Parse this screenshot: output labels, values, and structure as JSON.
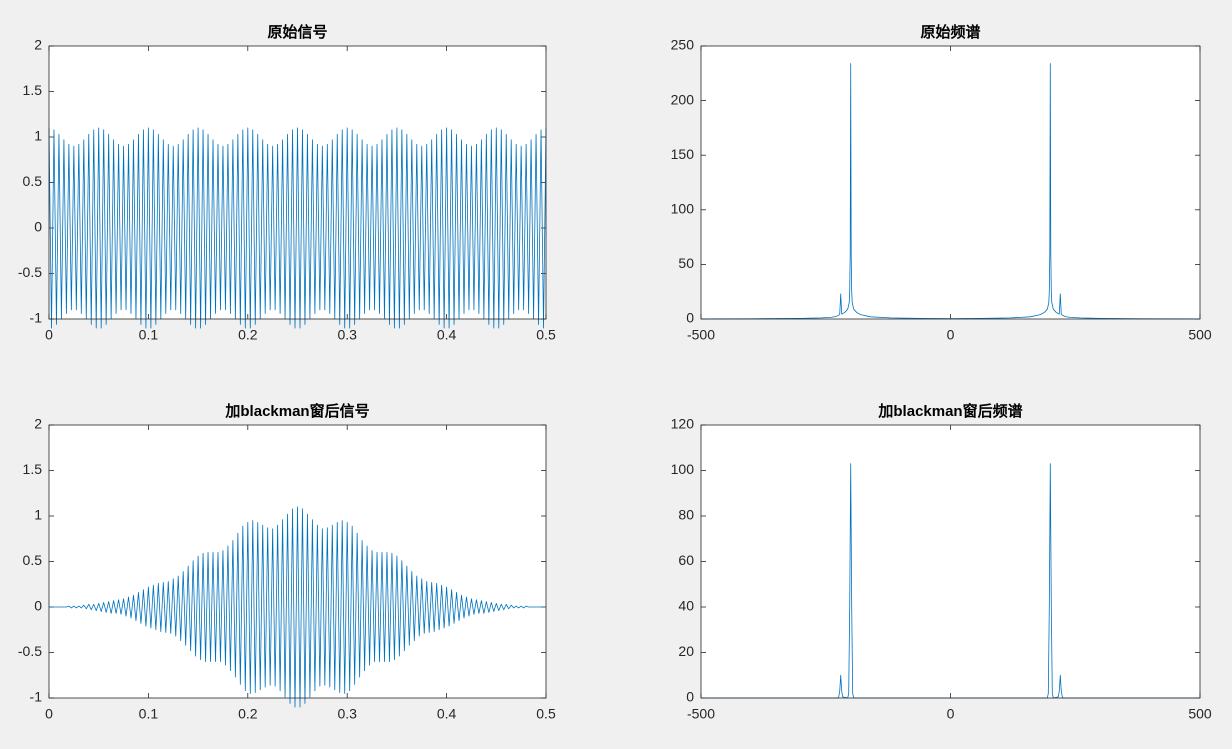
{
  "chart_data": [
    {
      "type": "line",
      "title": "原始信号",
      "color": "#0072bd",
      "x": [
        0,
        0.0025,
        0.005,
        0.0075,
        0.01,
        0.0125,
        0.015,
        0.0175,
        0.02,
        0.0225,
        0.025,
        0.0275,
        0.03,
        0.0325,
        0.035,
        0.0375,
        0.04,
        0.0425,
        0.045,
        0.0475,
        0.05,
        0.0525,
        0.055,
        0.0575,
        0.06,
        0.0625,
        0.065,
        0.0675,
        0.07,
        0.0725,
        0.075,
        0.0775,
        0.08,
        0.0825,
        0.085,
        0.0875,
        0.09,
        0.0925,
        0.095,
        0.0975,
        0.1,
        0.1025,
        0.105,
        0.1075,
        0.11,
        0.1125,
        0.115,
        0.1175,
        0.12,
        0.1225,
        0.125,
        0.1275,
        0.13,
        0.1325,
        0.135,
        0.1375,
        0.14,
        0.1425,
        0.145,
        0.1475,
        0.15,
        0.1525,
        0.155,
        0.1575,
        0.16,
        0.1625,
        0.165,
        0.1675,
        0.17,
        0.1725,
        0.175,
        0.1775,
        0.18,
        0.1825,
        0.185,
        0.1875,
        0.19,
        0.1925,
        0.195,
        0.1975,
        0.2,
        0.2025,
        0.205,
        0.2075,
        0.21,
        0.2125,
        0.215,
        0.2175,
        0.22,
        0.2225,
        0.225,
        0.2275,
        0.23,
        0.2325,
        0.235,
        0.2375,
        0.24,
        0.2425,
        0.245,
        0.2475,
        0.25,
        0.2525,
        0.255,
        0.2575,
        0.26,
        0.2625,
        0.265,
        0.2675,
        0.27,
        0.2725,
        0.275,
        0.2775,
        0.28,
        0.2825,
        0.285,
        0.2875,
        0.29,
        0.2925,
        0.295,
        0.2975,
        0.3,
        0.3025,
        0.305,
        0.3075,
        0.31,
        0.3125,
        0.315,
        0.3175,
        0.32,
        0.3225,
        0.325,
        0.3275,
        0.33,
        0.3325,
        0.335,
        0.3375,
        0.34,
        0.3425,
        0.345,
        0.3475,
        0.35,
        0.3525,
        0.355,
        0.3575,
        0.36,
        0.3625,
        0.365,
        0.3675,
        0.37,
        0.3725,
        0.375,
        0.3775,
        0.38,
        0.3825,
        0.385,
        0.3875,
        0.39,
        0.3925,
        0.395,
        0.3975,
        0.4,
        0.4025,
        0.405,
        0.4075,
        0.41,
        0.4125,
        0.415,
        0.4175,
        0.42,
        0.4225,
        0.425,
        0.4275,
        0.43,
        0.4325,
        0.435,
        0.4375,
        0.44,
        0.4425,
        0.445,
        0.4475,
        0.45,
        0.4525,
        0.455,
        0.4575,
        0.46,
        0.4625,
        0.465,
        0.4675,
        0.47,
        0.4725,
        0.475,
        0.4775,
        0.48,
        0.4825,
        0.485,
        0.4875,
        0.49,
        0.4925,
        0.495,
        0.4975,
        0.5
      ],
      "values": [
        1.1,
        -1.1,
        1.08,
        -1.06,
        1.03,
        -1,
        0.97,
        -0.94,
        0.92,
        -0.9,
        0.9,
        -0.9,
        0.92,
        -0.94,
        0.97,
        -1,
        1.03,
        -1.06,
        1.08,
        -1.1,
        1.1,
        -1.1,
        1.08,
        -1.06,
        1.03,
        -1,
        0.97,
        -0.94,
        0.92,
        -0.9,
        0.9,
        -0.9,
        0.92,
        -0.94,
        0.97,
        -1,
        1.03,
        -1.06,
        1.08,
        -1.1,
        1.1,
        -1.1,
        1.08,
        -1.06,
        1.03,
        -1,
        0.97,
        -0.94,
        0.92,
        -0.9,
        0.9,
        -0.9,
        0.92,
        -0.94,
        0.97,
        -1,
        1.03,
        -1.06,
        1.08,
        -1.1,
        1.1,
        -1.1,
        1.08,
        -1.06,
        1.03,
        -1,
        0.97,
        -0.94,
        0.92,
        -0.9,
        0.9,
        -0.9,
        0.92,
        -0.94,
        0.97,
        -1,
        1.03,
        -1.06,
        1.08,
        -1.1,
        1.1,
        -1.1,
        1.08,
        -1.06,
        1.03,
        -1,
        0.97,
        -0.94,
        0.92,
        -0.9,
        0.9,
        -0.9,
        0.92,
        -0.94,
        0.97,
        -1,
        1.03,
        -1.06,
        1.08,
        -1.1,
        1.1,
        -1.1,
        1.08,
        -1.06,
        1.03,
        -1,
        0.97,
        -0.94,
        0.92,
        -0.9,
        0.9,
        -0.9,
        0.92,
        -0.94,
        0.97,
        -1,
        1.03,
        -1.06,
        1.08,
        -1.1,
        1.1,
        -1.1,
        1.08,
        -1.06,
        1.03,
        -1,
        0.97,
        -0.94,
        0.92,
        -0.9,
        0.9,
        -0.9,
        0.92,
        -0.94,
        0.97,
        -1,
        1.03,
        -1.06,
        1.08,
        -1.1,
        1.1,
        -1.1,
        1.08,
        -1.06,
        1.03,
        -1,
        0.97,
        -0.94,
        0.92,
        -0.9,
        0.9,
        -0.9,
        0.92,
        -0.94,
        0.97,
        -1,
        1.03,
        -1.06,
        1.08,
        -1.1,
        1.1,
        -1.1,
        1.08,
        -1.06,
        1.03,
        -1,
        0.97,
        -0.94,
        0.92,
        -0.9,
        0.9,
        -0.9,
        0.92,
        -0.94,
        0.97,
        -1,
        1.03,
        -1.06,
        1.08,
        -1.1,
        1.1,
        -1.1,
        1.08,
        -1.06,
        1.03,
        -1,
        0.97,
        -0.94,
        0.92,
        -0.9,
        0.9,
        -0.9,
        0.92,
        -0.94,
        0.97,
        -1,
        1.03,
        -1.06,
        1.08,
        -1.1,
        1.1
      ],
      "xlim": [
        0,
        0.5
      ],
      "xticks": [
        0,
        0.1,
        0.2,
        0.3,
        0.4,
        0.5
      ],
      "ylim": [
        -1,
        2
      ],
      "yticks": [
        -1,
        -0.5,
        0,
        0.5,
        1,
        1.5,
        2
      ]
    },
    {
      "type": "line",
      "title": "原始频谱",
      "color": "#0072bd",
      "x": [
        -500,
        -400,
        -300,
        -260,
        -240,
        -230,
        -224,
        -222,
        -220,
        -218,
        -212,
        -206,
        -203,
        -202,
        -201,
        -200,
        -199,
        -198,
        -197,
        -194,
        -188,
        -180,
        -160,
        -120,
        -60,
        0,
        60,
        120,
        160,
        180,
        188,
        194,
        197,
        198,
        199,
        200,
        201,
        202,
        203,
        206,
        212,
        218,
        220,
        222,
        224,
        230,
        240,
        260,
        300,
        400,
        500
      ],
      "values": [
        0.1,
        0.2,
        0.5,
        1,
        1.5,
        2.2,
        3.5,
        4.5,
        23,
        4.5,
        6,
        9,
        15,
        25,
        60,
        234,
        60,
        25,
        15,
        9,
        6,
        4,
        2,
        1,
        0.5,
        0.3,
        0.5,
        1,
        2,
        4,
        6,
        9,
        15,
        25,
        60,
        234,
        60,
        25,
        15,
        9,
        6,
        4.5,
        23,
        4.5,
        3.5,
        2.2,
        1.5,
        1,
        0.5,
        0.2,
        0.1
      ],
      "xlim": [
        -500,
        500
      ],
      "xticks": [
        -500,
        0,
        500
      ],
      "ylim": [
        0,
        250
      ],
      "yticks": [
        0,
        50,
        100,
        150,
        200,
        250
      ]
    },
    {
      "type": "line",
      "title": "加blackman窗后信号",
      "color": "#0072bd",
      "x": [
        0,
        0.0025,
        0.005,
        0.0075,
        0.01,
        0.0125,
        0.015,
        0.0175,
        0.02,
        0.0225,
        0.025,
        0.0275,
        0.03,
        0.0325,
        0.035,
        0.0375,
        0.04,
        0.0425,
        0.045,
        0.0475,
        0.05,
        0.0525,
        0.055,
        0.0575,
        0.06,
        0.0625,
        0.065,
        0.0675,
        0.07,
        0.0725,
        0.075,
        0.0775,
        0.08,
        0.0825,
        0.085,
        0.0875,
        0.09,
        0.0925,
        0.095,
        0.0975,
        0.1,
        0.1025,
        0.105,
        0.1075,
        0.11,
        0.1125,
        0.115,
        0.1175,
        0.12,
        0.1225,
        0.125,
        0.1275,
        0.13,
        0.1325,
        0.135,
        0.1375,
        0.14,
        0.1425,
        0.145,
        0.1475,
        0.15,
        0.1525,
        0.155,
        0.1575,
        0.16,
        0.1625,
        0.165,
        0.1675,
        0.17,
        0.1725,
        0.175,
        0.1775,
        0.18,
        0.1825,
        0.185,
        0.1875,
        0.19,
        0.1925,
        0.195,
        0.1975,
        0.2,
        0.2025,
        0.205,
        0.2075,
        0.21,
        0.2125,
        0.215,
        0.2175,
        0.22,
        0.2225,
        0.225,
        0.2275,
        0.23,
        0.2325,
        0.235,
        0.2375,
        0.24,
        0.2425,
        0.245,
        0.2475,
        0.25,
        0.2525,
        0.255,
        0.2575,
        0.26,
        0.2625,
        0.265,
        0.2675,
        0.27,
        0.2725,
        0.275,
        0.2775,
        0.28,
        0.2825,
        0.285,
        0.2875,
        0.29,
        0.2925,
        0.295,
        0.2975,
        0.3,
        0.3025,
        0.305,
        0.3075,
        0.31,
        0.3125,
        0.315,
        0.3175,
        0.32,
        0.3225,
        0.325,
        0.3275,
        0.33,
        0.3325,
        0.335,
        0.3375,
        0.34,
        0.3425,
        0.345,
        0.3475,
        0.35,
        0.3525,
        0.355,
        0.3575,
        0.36,
        0.3625,
        0.365,
        0.3675,
        0.37,
        0.3725,
        0.375,
        0.3775,
        0.38,
        0.3825,
        0.385,
        0.3875,
        0.39,
        0.3925,
        0.395,
        0.3975,
        0.4,
        0.4025,
        0.405,
        0.4075,
        0.41,
        0.4125,
        0.415,
        0.4175,
        0.42,
        0.4225,
        0.425,
        0.4275,
        0.43,
        0.4325,
        0.435,
        0.4375,
        0.44,
        0.4425,
        0.445,
        0.4475,
        0.45,
        0.4525,
        0.455,
        0.4575,
        0.46,
        0.4625,
        0.465,
        0.4675,
        0.47,
        0.4725,
        0.475,
        0.4775,
        0.48,
        0.4825,
        0.485,
        0.4875,
        0.49,
        0.4925,
        0.495,
        0.4975,
        0.5
      ],
      "values": [
        0,
        0,
        0,
        0,
        0,
        0,
        0,
        0,
        0.01,
        -0.01,
        0.01,
        -0.01,
        0.01,
        -0.01,
        0.02,
        -0.02,
        0.03,
        -0.03,
        0.03,
        -0.04,
        0.04,
        -0.05,
        0.05,
        -0.06,
        0.06,
        -0.07,
        0.07,
        -0.07,
        0.08,
        -0.08,
        0.09,
        -0.1,
        0.11,
        -0.12,
        0.13,
        -0.15,
        0.16,
        -0.18,
        0.19,
        -0.21,
        0.22,
        -0.23,
        0.24,
        -0.25,
        0.26,
        -0.27,
        0.27,
        -0.28,
        0.28,
        -0.29,
        0.31,
        -0.32,
        0.34,
        -0.37,
        0.39,
        -0.42,
        0.45,
        -0.48,
        0.51,
        -0.54,
        0.56,
        -0.58,
        0.59,
        -0.6,
        0.6,
        -0.6,
        0.6,
        -0.6,
        0.6,
        -0.6,
        0.62,
        -0.64,
        0.67,
        -0.7,
        0.73,
        -0.77,
        0.81,
        -0.85,
        0.89,
        -0.92,
        0.93,
        -0.95,
        0.95,
        -0.94,
        0.93,
        -0.91,
        0.9,
        -0.88,
        0.87,
        -0.86,
        0.86,
        -0.87,
        0.9,
        -0.92,
        0.96,
        -0.99,
        1.02,
        -1.06,
        1.08,
        -1.1,
        1.1,
        -1.1,
        1.08,
        -1.06,
        1.02,
        -0.99,
        0.96,
        -0.92,
        0.9,
        -0.87,
        0.86,
        -0.86,
        0.87,
        -0.88,
        0.9,
        -0.91,
        0.93,
        -0.94,
        0.95,
        -0.95,
        0.93,
        -0.92,
        0.89,
        -0.85,
        0.81,
        -0.77,
        0.73,
        -0.7,
        0.67,
        -0.64,
        0.62,
        -0.6,
        0.6,
        -0.6,
        0.6,
        -0.6,
        0.6,
        -0.6,
        0.59,
        -0.58,
        0.56,
        -0.54,
        0.51,
        -0.48,
        0.45,
        -0.42,
        0.39,
        -0.37,
        0.34,
        -0.32,
        0.31,
        -0.29,
        0.28,
        -0.28,
        0.27,
        -0.27,
        0.26,
        -0.25,
        0.24,
        -0.23,
        0.22,
        -0.21,
        0.19,
        -0.18,
        0.16,
        -0.15,
        0.13,
        -0.12,
        0.11,
        -0.1,
        0.09,
        -0.08,
        0.08,
        -0.07,
        0.07,
        -0.07,
        0.06,
        -0.06,
        0.05,
        -0.05,
        0.04,
        -0.04,
        0.03,
        -0.03,
        0.03,
        -0.02,
        0.02,
        -0.01,
        0.01,
        -0.01,
        0.01,
        -0.01,
        0.01,
        0,
        0,
        0,
        0,
        0,
        0,
        0,
        0
      ],
      "xlim": [
        0,
        0.5
      ],
      "xticks": [
        0,
        0.1,
        0.2,
        0.3,
        0.4,
        0.5
      ],
      "ylim": [
        -1,
        2
      ],
      "yticks": [
        -1,
        -0.5,
        0,
        0.5,
        1,
        1.5,
        2
      ]
    },
    {
      "type": "line",
      "title": "加blackman窗后频谱",
      "color": "#0072bd",
      "x": [
        -500,
        -226,
        -224,
        -222,
        -220,
        -218,
        -216,
        -206,
        -204,
        -202,
        -200,
        -198,
        -196,
        -194,
        0,
        194,
        196,
        198,
        200,
        202,
        204,
        206,
        216,
        218,
        220,
        222,
        224,
        226,
        500
      ],
      "values": [
        0,
        0,
        0.5,
        3,
        10,
        3,
        0.5,
        0,
        2,
        40,
        103,
        40,
        2,
        0,
        0,
        0,
        2,
        40,
        103,
        40,
        2,
        0,
        0.5,
        3,
        10,
        3,
        0.5,
        0,
        0
      ],
      "xlim": [
        -500,
        500
      ],
      "xticks": [
        -500,
        0,
        500
      ],
      "ylim": [
        0,
        120
      ],
      "yticks": [
        0,
        20,
        40,
        60,
        80,
        100,
        120
      ]
    }
  ]
}
